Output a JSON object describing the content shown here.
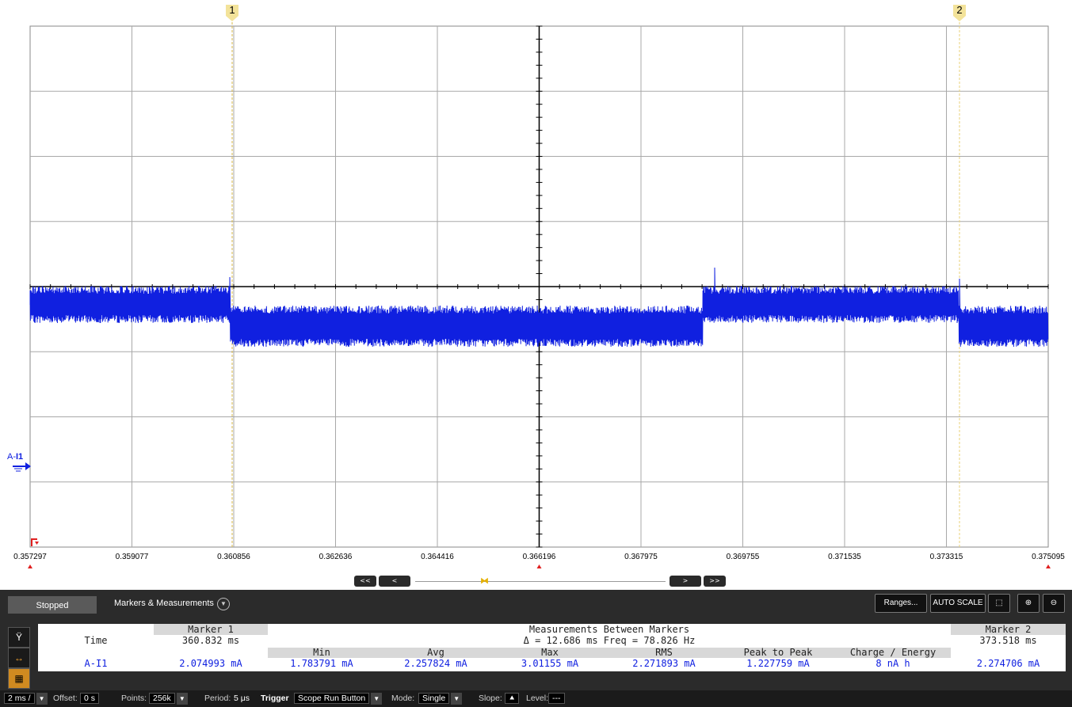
{
  "scope": {
    "x_ticks": [
      "0.357297",
      "0.359077",
      "0.360856",
      "0.362636",
      "0.364416",
      "0.366196",
      "0.367975",
      "0.369755",
      "0.371535",
      "0.373315",
      "0.375095"
    ],
    "marker1_label": "1",
    "marker2_label": "2",
    "channel_label_prefix": "A-",
    "channel_label_name": "I1",
    "trace_color": "#1020e0",
    "marker_color": "#f3e39a",
    "grid_color": "#a8a8a8"
  },
  "nav": {
    "first": "<<",
    "prev": "<",
    "next": ">",
    "last": ">>"
  },
  "toolbar": {
    "status": "Stopped",
    "markers_measurements": "Markers & Measurements",
    "ranges": "Ranges...",
    "auto_scale": "AUTO SCALE"
  },
  "measurements": {
    "marker1_header": "Marker 1",
    "between_header": "Measurements Between Markers",
    "marker2_header": "Marker 2",
    "time_label": "Time",
    "marker1_time": "360.832 ms",
    "delta": "Δ = 12.686 ms  Freq = 78.826 Hz",
    "marker2_time": "373.518 ms",
    "col_min": "Min",
    "col_avg": "Avg",
    "col_max": "Max",
    "col_rms": "RMS",
    "col_p2p": "Peak to Peak",
    "col_charge": "Charge / Energy",
    "channel": "A-I1",
    "marker1_value": "2.074993 mA",
    "min": "1.783791 mA",
    "avg": "2.257824 mA",
    "max": "3.01155 mA",
    "rms": "2.271893 mA",
    "p2p": "1.227759 mA",
    "charge": "8 nA h",
    "marker2_value": "2.274706 mA"
  },
  "statusbar": {
    "timebase": "2 ms /",
    "offset_label": "Offset:",
    "offset_value": "0 s",
    "points_label": "Points:",
    "points_value": "256k",
    "period_label": "Period:",
    "period_value": "5 μs",
    "trigger_label": "Trigger",
    "trigger_value": "Scope Run Button",
    "mode_label": "Mode:",
    "mode_value": "Single",
    "slope_label": "Slope:",
    "level_label": "Level:",
    "level_value": "---"
  }
}
